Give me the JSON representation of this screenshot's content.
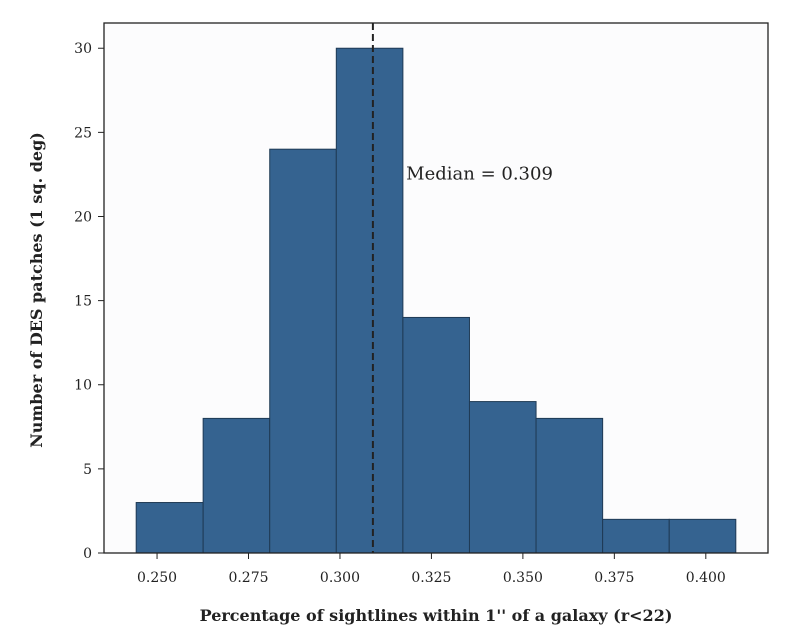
{
  "chart_data": {
    "type": "bar",
    "bins": [
      {
        "x0": 0.2443,
        "x1": 0.2626,
        "count": 3
      },
      {
        "x0": 0.2626,
        "x1": 0.2808,
        "count": 8
      },
      {
        "x0": 0.2808,
        "x1": 0.299,
        "count": 24
      },
      {
        "x0": 0.299,
        "x1": 0.3172,
        "count": 30
      },
      {
        "x0": 0.3172,
        "x1": 0.3354,
        "count": 14
      },
      {
        "x0": 0.3354,
        "x1": 0.3536,
        "count": 9
      },
      {
        "x0": 0.3536,
        "x1": 0.3718,
        "count": 8
      },
      {
        "x0": 0.3718,
        "x1": 0.39,
        "count": 2
      },
      {
        "x0": 0.39,
        "x1": 0.4082,
        "count": 2
      }
    ],
    "xlabel": "Percentage of sightlines within 1'' of a galaxy (r<22)",
    "ylabel": "Number of DES patches (1 sq. deg)",
    "xlim": [
      0.2355,
      0.417
    ],
    "ylim": [
      0,
      31.5
    ],
    "xticks": [
      0.25,
      0.275,
      0.3,
      0.325,
      0.35,
      0.375,
      0.4
    ],
    "xtick_labels": [
      "0.250",
      "0.275",
      "0.300",
      "0.325",
      "0.350",
      "0.375",
      "0.400"
    ],
    "yticks": [
      0,
      5,
      10,
      15,
      20,
      25,
      30
    ],
    "ytick_labels": [
      "0",
      "5",
      "10",
      "15",
      "20",
      "25",
      "30"
    ],
    "median": 0.309,
    "annotation": "Median = 0.309",
    "annotation_position": {
      "x": 0.3181,
      "y": 22.2
    },
    "grid": false,
    "colors": {
      "bar_fill": "#356390",
      "bar_edge": "#1f3a55",
      "median_line": "#222222",
      "plot_background": "#fcfcfd",
      "axis": "#222222"
    }
  }
}
